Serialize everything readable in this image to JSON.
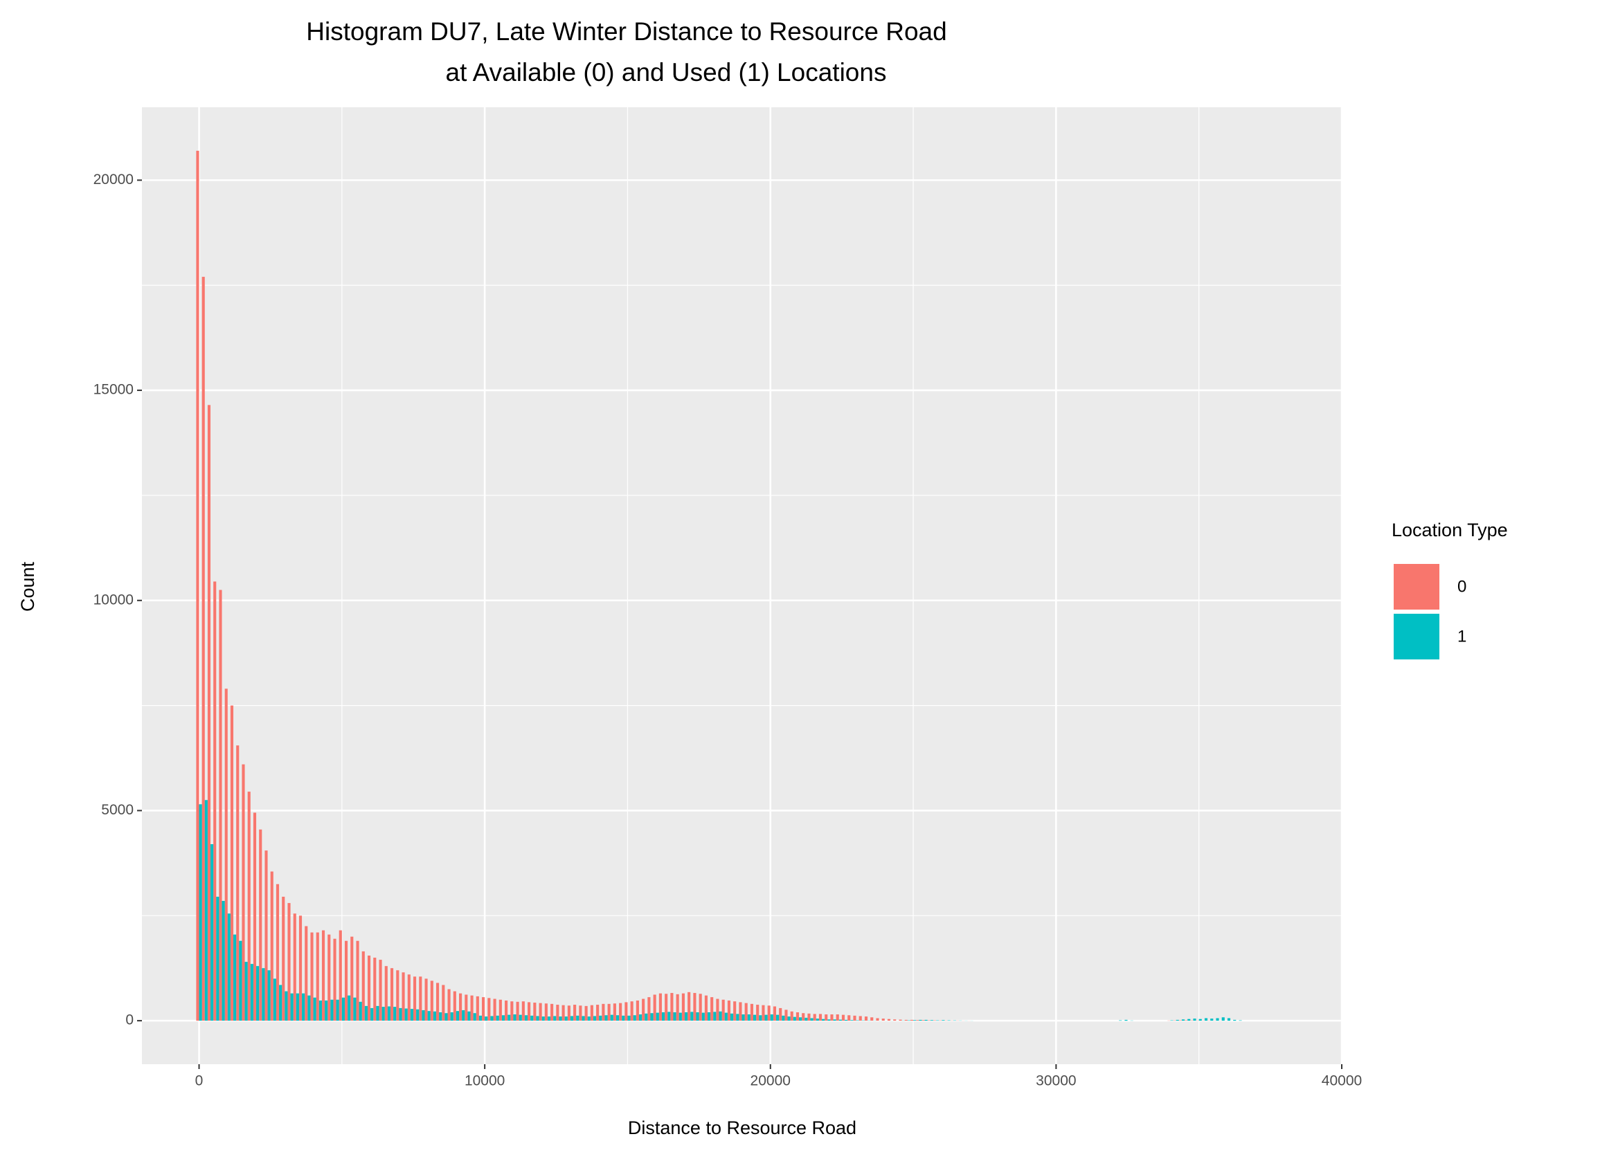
{
  "chart_data": {
    "type": "histogram",
    "title": [
      "Histogram DU7, Late Winter Distance to Resource Road",
      "at Available (0) and Used (1) Locations"
    ],
    "xlabel": "Distance to Resource Road",
    "ylabel": "Count",
    "legend_title": "Location Type",
    "legend_position": "right",
    "bins": [
      -100,
      100,
      300,
      500,
      700,
      900,
      1100,
      1300,
      1500,
      1700,
      1900,
      2100,
      2300,
      2500,
      2700,
      2900,
      3100,
      3300,
      3500,
      3700,
      3900,
      4100,
      4300,
      4500,
      4700,
      4900,
      5100,
      5300,
      5500,
      5700,
      5900,
      6100,
      6300,
      6500,
      6700,
      6900,
      7100,
      7300,
      7500,
      7700,
      7900,
      8100,
      8300,
      8500,
      8700,
      8900,
      9100,
      9300,
      9500,
      9700,
      9900,
      10100,
      10300,
      10500,
      10700,
      10900,
      11100,
      11300,
      11500,
      11700,
      11900,
      12100,
      12300,
      12500,
      12700,
      12900,
      13100,
      13300,
      13500,
      13700,
      13900,
      14100,
      14300,
      14500,
      14700,
      14900,
      15100,
      15300,
      15500,
      15700,
      15900,
      16100,
      16300,
      16500,
      16700,
      16900,
      17100,
      17300,
      17500,
      17700,
      17900,
      18100,
      18300,
      18500,
      18700,
      18900,
      19100,
      19300,
      19500,
      19700,
      19900,
      20100,
      20300,
      20500,
      20700,
      20900,
      21100,
      21300,
      21500,
      21700,
      21900,
      22100,
      22300,
      22500,
      22700,
      22900,
      23100,
      23300,
      23500,
      23700,
      23900,
      24100,
      24300,
      24500,
      24700,
      24900,
      25100,
      25300,
      25500,
      25700,
      25900,
      26100,
      26300,
      26500,
      26700,
      26900,
      27100,
      27300,
      27500,
      27700,
      27900,
      28100,
      28300,
      28500,
      28700,
      28900,
      29100,
      29300,
      29500,
      29700,
      29900,
      30100,
      30300,
      30500,
      30700,
      30900,
      31100,
      31300,
      31500,
      31700,
      31900,
      32100,
      32300,
      32500,
      32700,
      32900,
      33100,
      33300,
      33500,
      33700,
      33900,
      34100,
      34300,
      34500,
      34700,
      34900,
      35100,
      35300,
      35500,
      35700,
      35900,
      36100,
      36300,
      36500
    ],
    "series": [
      {
        "name": "0",
        "color": "#F8766D",
        "values": [
          20700,
          17700,
          14650,
          10450,
          10250,
          7900,
          7500,
          6550,
          6100,
          5450,
          4950,
          4550,
          4050,
          3550,
          3250,
          2950,
          2800,
          2550,
          2500,
          2250,
          2100,
          2100,
          2150,
          2050,
          1950,
          2150,
          1900,
          2000,
          1900,
          1650,
          1550,
          1500,
          1450,
          1300,
          1250,
          1200,
          1150,
          1100,
          1050,
          1050,
          1000,
          950,
          900,
          850,
          750,
          700,
          650,
          620,
          600,
          580,
          560,
          540,
          520,
          500,
          480,
          460,
          450,
          460,
          440,
          430,
          420,
          410,
          400,
          380,
          370,
          360,
          380,
          360,
          350,
          370,
          380,
          400,
          400,
          410,
          420,
          440,
          460,
          480,
          520,
          560,
          620,
          650,
          640,
          660,
          630,
          650,
          680,
          660,
          640,
          600,
          560,
          520,
          500,
          480,
          460,
          440,
          420,
          400,
          380,
          370,
          360,
          340,
          300,
          260,
          220,
          200,
          180,
          170,
          160,
          160,
          150,
          150,
          150,
          140,
          130,
          120,
          110,
          100,
          80,
          60,
          50,
          40,
          30,
          25,
          20,
          20,
          15,
          15,
          10,
          10,
          8,
          6,
          5,
          5,
          3,
          2,
          0,
          0,
          0,
          0,
          0,
          0,
          0,
          0,
          0,
          0,
          0,
          0,
          0,
          0,
          0,
          0,
          0,
          0,
          0,
          0,
          0,
          0,
          0,
          0,
          0,
          0,
          0,
          0,
          0,
          0,
          0,
          0,
          0,
          0,
          5,
          8,
          10,
          10,
          8,
          6,
          5,
          5,
          4,
          3,
          2,
          0,
          0
        ]
      },
      {
        "name": "1",
        "color": "#00BFC4",
        "values": [
          5150,
          5250,
          4200,
          2950,
          2850,
          2550,
          2050,
          1900,
          1400,
          1350,
          1300,
          1250,
          1200,
          1000,
          850,
          700,
          650,
          650,
          650,
          600,
          550,
          480,
          480,
          500,
          500,
          550,
          600,
          550,
          450,
          350,
          300,
          350,
          330,
          340,
          330,
          300,
          290,
          280,
          270,
          250,
          230,
          220,
          200,
          180,
          200,
          230,
          250,
          220,
          180,
          120,
          100,
          110,
          120,
          130,
          140,
          150,
          140,
          130,
          120,
          110,
          100,
          100,
          110,
          100,
          100,
          110,
          120,
          110,
          100,
          110,
          120,
          130,
          140,
          130,
          120,
          120,
          130,
          150,
          170,
          180,
          190,
          200,
          210,
          200,
          190,
          200,
          210,
          200,
          190,
          200,
          210,
          220,
          190,
          170,
          160,
          150,
          150,
          140,
          130,
          140,
          150,
          140,
          120,
          100,
          90,
          80,
          70,
          60,
          50,
          40,
          30,
          30,
          25,
          20,
          15,
          10,
          8,
          6,
          4,
          2,
          2,
          2,
          1,
          5,
          10,
          15,
          20,
          20,
          15,
          10,
          15,
          10,
          8,
          5,
          3,
          2,
          0,
          0,
          0,
          0,
          0,
          0,
          0,
          0,
          0,
          0,
          0,
          0,
          0,
          0,
          0,
          0,
          0,
          0,
          0,
          0,
          0,
          0,
          0,
          0,
          0,
          10,
          20,
          5,
          0,
          0,
          0,
          0,
          0,
          0,
          10,
          20,
          30,
          40,
          50,
          40,
          60,
          50,
          60,
          80,
          60,
          20,
          10
        ]
      }
    ],
    "xlim": [
      -2000,
      40000
    ],
    "ylim": [
      -1035,
      21735
    ],
    "xticks": [
      0,
      10000,
      20000,
      30000,
      40000
    ],
    "yticks": [
      0,
      5000,
      10000,
      15000,
      20000
    ],
    "xminor": [
      5000,
      15000,
      25000,
      35000
    ],
    "yminor": [
      2500,
      7500,
      12500,
      17500
    ],
    "grid": true
  }
}
